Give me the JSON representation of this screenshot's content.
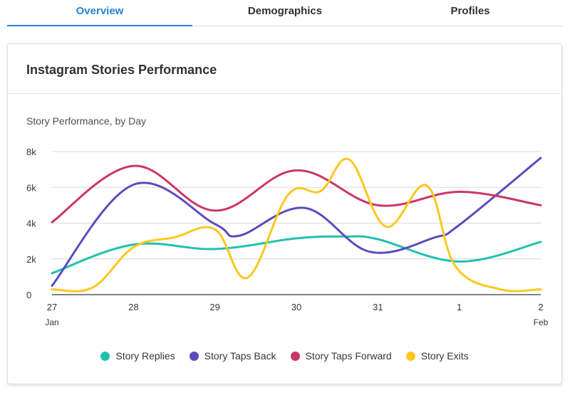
{
  "tabs": [
    {
      "label": "Overview",
      "active": true
    },
    {
      "label": "Demographics",
      "active": false
    },
    {
      "label": "Profiles",
      "active": false
    }
  ],
  "card": {
    "title": "Instagram Stories Performance",
    "subtitle": "Story Performance, by Day"
  },
  "chart_data": {
    "type": "line",
    "title": "Story Performance, by Day",
    "ylim": [
      0,
      8000
    ],
    "y_ticks": [
      {
        "value": 0,
        "label": "0"
      },
      {
        "value": 2000,
        "label": "2k"
      },
      {
        "value": 4000,
        "label": "4k"
      },
      {
        "value": 6000,
        "label": "6k"
      },
      {
        "value": 8000,
        "label": "8k"
      }
    ],
    "xlim": [
      0,
      6
    ],
    "x_ticks": [
      {
        "value": 0,
        "label": "27",
        "sub": "Jan"
      },
      {
        "value": 1,
        "label": "28",
        "sub": ""
      },
      {
        "value": 2,
        "label": "29",
        "sub": ""
      },
      {
        "value": 3,
        "label": "30",
        "sub": ""
      },
      {
        "value": 4,
        "label": "31",
        "sub": ""
      },
      {
        "value": 5,
        "label": "1",
        "sub": ""
      },
      {
        "value": 6,
        "label": "2",
        "sub": "Feb"
      }
    ],
    "grid": true,
    "legend_position": "bottom-center",
    "series": [
      {
        "name": "Story Replies",
        "color": "#1fc1b0",
        "x": [
          0,
          1,
          2,
          3,
          3.6,
          4,
          5,
          6
        ],
        "y": [
          1200,
          2800,
          2550,
          3150,
          3250,
          3100,
          1850,
          2950
        ]
      },
      {
        "name": "Story Taps Back",
        "color": "#5b4bbd",
        "x": [
          0,
          1,
          2,
          2.3,
          3.1,
          3.9,
          4.7,
          5,
          6
        ],
        "y": [
          500,
          6150,
          3950,
          3300,
          4850,
          2400,
          3200,
          3900,
          7650
        ]
      },
      {
        "name": "Story Taps Forward",
        "color": "#cc3667",
        "x": [
          0,
          1,
          2,
          3,
          4,
          5,
          6
        ],
        "y": [
          4050,
          7200,
          4700,
          6950,
          5000,
          5750,
          5000
        ]
      },
      {
        "name": "Story Exits",
        "color": "#fcc81e",
        "x": [
          0,
          0.5,
          1,
          1.5,
          2,
          2.4,
          2.9,
          3.3,
          3.65,
          4.1,
          4.6,
          4.95,
          5.5,
          6
        ],
        "y": [
          300,
          400,
          2650,
          3200,
          3650,
          950,
          5600,
          5800,
          7550,
          3800,
          6100,
          1600,
          300,
          300
        ]
      }
    ]
  }
}
